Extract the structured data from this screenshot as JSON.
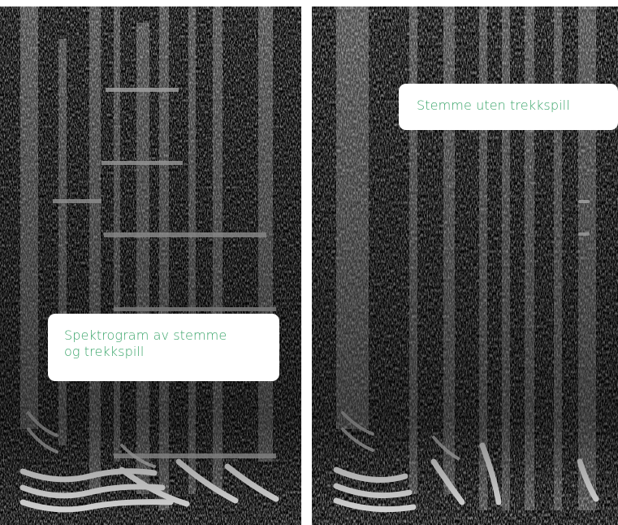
{
  "images": [
    {
      "id": "left",
      "caption_lines": [
        "Spektrogram av stemme",
        "og trekkspill"
      ]
    },
    {
      "id": "right",
      "caption_lines": [
        "Stemme uten trekkspill"
      ]
    }
  ],
  "colors": {
    "background": "#050505",
    "caption_text": "#3aa56a",
    "caption_box": "#ffffff"
  }
}
